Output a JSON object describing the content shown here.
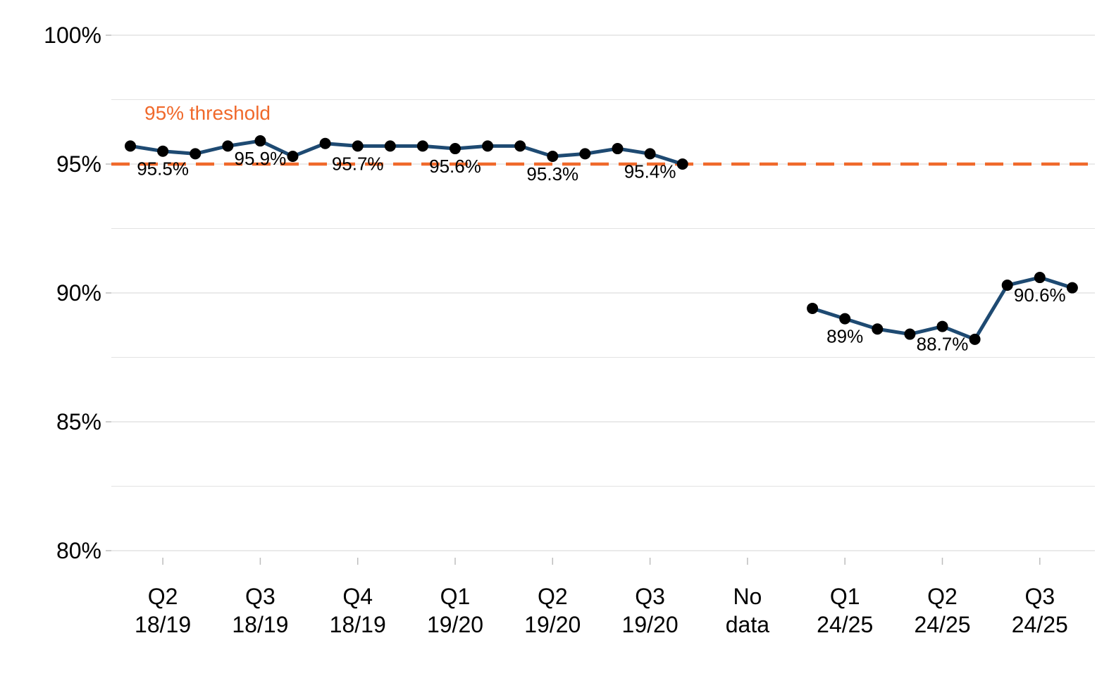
{
  "chart_data": {
    "type": "line",
    "title": "",
    "xlabel": "",
    "ylabel": "",
    "ylim": [
      80,
      100
    ],
    "y_ticks": [
      {
        "value": 80,
        "label": "80%"
      },
      {
        "value": 85,
        "label": "85%"
      },
      {
        "value": 90,
        "label": "90%"
      },
      {
        "value": 95,
        "label": "95%"
      },
      {
        "value": 100,
        "label": "100%"
      }
    ],
    "y_minor_gridlines": [
      82.5,
      87.5,
      92.5,
      97.5
    ],
    "grid": true,
    "x_tick_labels": [
      {
        "index": 1,
        "line1": "Q2",
        "line2": "18/19"
      },
      {
        "index": 4,
        "line1": "Q3",
        "line2": "18/19"
      },
      {
        "index": 7,
        "line1": "Q4",
        "line2": "18/19"
      },
      {
        "index": 10,
        "line1": "Q1",
        "line2": "19/20"
      },
      {
        "index": 13,
        "line1": "Q2",
        "line2": "19/20"
      },
      {
        "index": 16,
        "line1": "Q3",
        "line2": "19/20"
      },
      {
        "index": 19,
        "line1": "No",
        "line2": "data"
      },
      {
        "index": 22,
        "line1": "Q1",
        "line2": "24/25"
      },
      {
        "index": 25,
        "line1": "Q2",
        "line2": "24/25"
      },
      {
        "index": 28,
        "line1": "Q3",
        "line2": "24/25"
      }
    ],
    "series": [
      {
        "segments": [
          {
            "x": [
              0,
              1,
              2,
              3,
              4,
              5,
              6,
              7,
              8,
              9,
              10,
              11,
              12,
              13,
              14,
              15,
              16,
              17
            ],
            "values": [
              95.7,
              95.5,
              95.4,
              95.7,
              95.9,
              95.3,
              95.8,
              95.7,
              95.7,
              95.7,
              95.6,
              95.7,
              95.7,
              95.3,
              95.4,
              95.6,
              95.4,
              95.0
            ]
          },
          {
            "x": [
              21,
              22,
              23,
              24,
              25,
              26,
              27,
              28,
              29
            ],
            "values": [
              89.4,
              89.0,
              88.6,
              88.4,
              88.7,
              88.2,
              90.3,
              90.6,
              90.2
            ]
          }
        ],
        "color": "#1e4a72"
      }
    ],
    "data_labels": [
      {
        "x": 1,
        "value": 95.5,
        "text": "95.5%"
      },
      {
        "x": 4,
        "value": 95.9,
        "text": "95.9%"
      },
      {
        "x": 7,
        "value": 95.7,
        "text": "95.7%"
      },
      {
        "x": 10,
        "value": 95.6,
        "text": "95.6%"
      },
      {
        "x": 13,
        "value": 95.3,
        "text": "95.3%"
      },
      {
        "x": 16,
        "value": 95.4,
        "text": "95.4%"
      },
      {
        "x": 22,
        "value": 89.0,
        "text": "89%"
      },
      {
        "x": 25,
        "value": 88.7,
        "text": "88.7%"
      },
      {
        "x": 28,
        "value": 90.6,
        "text": "90.6%"
      }
    ],
    "threshold": {
      "value": 95,
      "label": "95% threshold",
      "color": "#f0692b",
      "style": "dashed"
    },
    "colors": {
      "line": "#1e4a72",
      "point": "#000000",
      "grid": "#e3e3e3",
      "threshold": "#f0692b"
    }
  }
}
